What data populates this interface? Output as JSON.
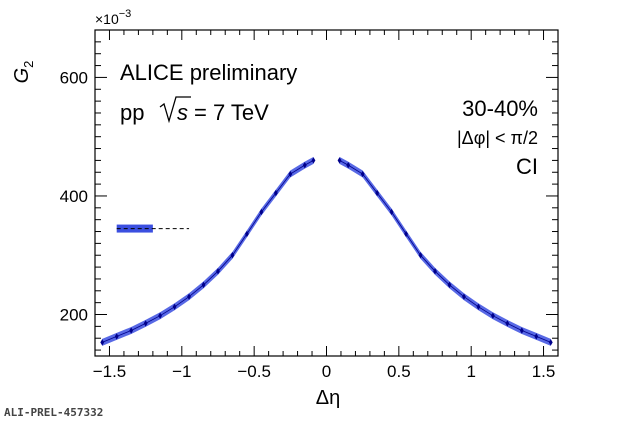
{
  "chart_data": {
    "type": "scatter",
    "ylabel": "G",
    "ylabel_sub": "2",
    "xlabel": "Δη",
    "y_multiplier": "×10",
    "y_multiplier_exp": "−3",
    "xlim": [
      -1.6,
      1.6
    ],
    "ylim": [
      130,
      680
    ],
    "x_ticks": [
      -1.5,
      -1,
      -0.5,
      0,
      0.5,
      1,
      1.5
    ],
    "x_tick_labels": [
      "−1.5",
      "−1",
      "−0.5",
      "0",
      "0.5",
      "1",
      "1.5"
    ],
    "y_ticks": [
      200,
      400,
      600
    ],
    "y_tick_labels": [
      "200",
      "400",
      "600"
    ],
    "grid": false,
    "annotations": {
      "experiment": "ALICE preliminary",
      "system_prefix": "pp",
      "sqrt_s": "s",
      "energy": "= 7 TeV",
      "centrality": "30-40%",
      "cut": "|Δφ| < π/2",
      "charge": "CI"
    },
    "series": [
      {
        "color": "#00008b",
        "band_color": "#3b4fe0",
        "points": [
          [
            -1.55,
            153
          ],
          [
            -1.45,
            163
          ],
          [
            -1.35,
            173
          ],
          [
            -1.25,
            185
          ],
          [
            -1.15,
            198
          ],
          [
            -1.05,
            213
          ],
          [
            -0.95,
            230
          ],
          [
            -0.85,
            250
          ],
          [
            -0.75,
            273
          ],
          [
            -0.65,
            300
          ],
          [
            -0.55,
            336
          ],
          [
            -0.45,
            373
          ],
          [
            -0.35,
            405
          ],
          [
            -0.25,
            437
          ],
          [
            -0.15,
            452
          ],
          [
            -0.09,
            460
          ],
          [
            0.09,
            460
          ],
          [
            0.15,
            452
          ],
          [
            0.25,
            437
          ],
          [
            0.35,
            405
          ],
          [
            0.45,
            373
          ],
          [
            0.55,
            336
          ],
          [
            0.65,
            300
          ],
          [
            0.75,
            273
          ],
          [
            0.85,
            250
          ],
          [
            0.95,
            230
          ],
          [
            1.05,
            213
          ],
          [
            1.15,
            198
          ],
          [
            1.25,
            185
          ],
          [
            1.35,
            173
          ],
          [
            1.45,
            163
          ],
          [
            1.55,
            153
          ]
        ]
      }
    ],
    "legend_marker": {
      "x_from": -1.45,
      "x_to": -1.2,
      "y": 345
    }
  },
  "footer": {
    "tag": "ALI-PREL-457332"
  }
}
